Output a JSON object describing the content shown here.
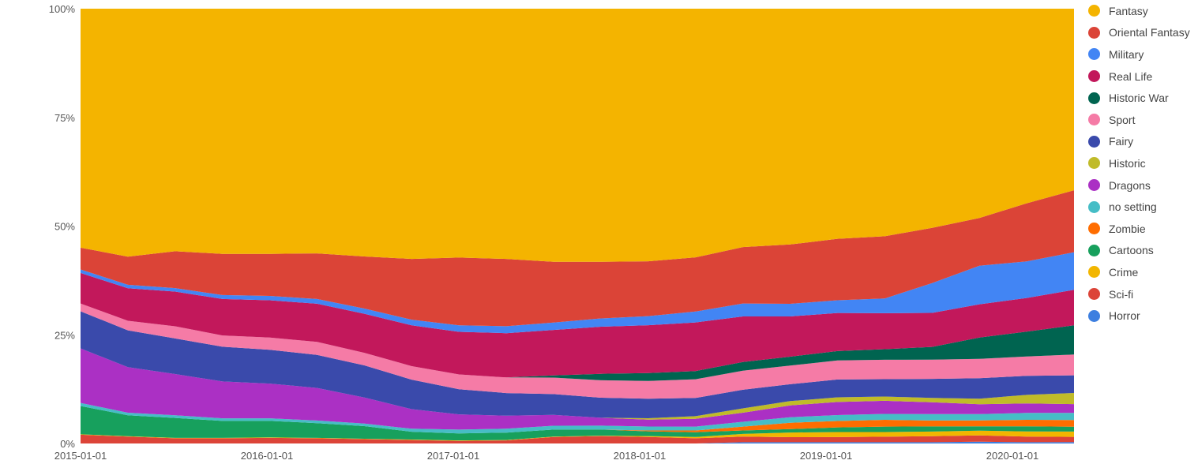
{
  "chart_data": {
    "type": "area",
    "stacked": true,
    "normalized": true,
    "x_ticks": [
      "2015-01-01",
      "2016-01-01",
      "2017-01-01",
      "2018-01-01",
      "2019-01-01",
      "2020-01-01"
    ],
    "y_ticks": [
      "0%",
      "25%",
      "50%",
      "75%",
      "100%"
    ],
    "ylim": [
      0,
      100
    ],
    "legend_position": "right",
    "grid": false,
    "x": [
      "2015-01",
      "2015-04",
      "2015-07",
      "2015-10",
      "2016-01",
      "2016-04",
      "2016-07",
      "2016-10",
      "2017-01",
      "2017-04",
      "2017-07",
      "2017-10",
      "2018-01",
      "2018-04",
      "2018-07",
      "2018-10",
      "2019-01",
      "2019-04",
      "2019-07",
      "2019-10",
      "2020-01",
      "2020-04"
    ],
    "series": [
      {
        "name": "Horror",
        "color": "#3d7fe0",
        "values": [
          0,
          0,
          0,
          0,
          0,
          0,
          0,
          0,
          0,
          0,
          0,
          0,
          0,
          0,
          0.3,
          0.3,
          0.3,
          0.3,
          0.3,
          0.4,
          0.3,
          0.3
        ]
      },
      {
        "name": "Sci-fi",
        "color": "#dc4438",
        "values": [
          2,
          1.6,
          1.2,
          1.2,
          1.3,
          1.2,
          1,
          0.8,
          0.6,
          0.7,
          1.5,
          1.7,
          1.5,
          1.2,
          1.3,
          1.2,
          1.2,
          1.3,
          1.4,
          1.5,
          1.3,
          1.2
        ]
      },
      {
        "name": "Crime",
        "color": "#f2b600",
        "values": [
          0.1,
          0.1,
          0.1,
          0.1,
          0.1,
          0.1,
          0.1,
          0.1,
          0.1,
          0.1,
          0.1,
          0.1,
          0.2,
          0.3,
          0.6,
          1.1,
          1.2,
          1.1,
          1.1,
          1.1,
          1.2,
          1.2
        ]
      },
      {
        "name": "Cartoons",
        "color": "#17a05d",
        "values": [
          6.5,
          4.8,
          4.6,
          3.9,
          3.8,
          3.4,
          2.9,
          1.8,
          1.6,
          1.7,
          1.6,
          1.4,
          1.1,
          1.1,
          0.8,
          0.8,
          1.1,
          1.3,
          1.2,
          1,
          1.2,
          1.1
        ]
      },
      {
        "name": "Zombie",
        "color": "#ff6d00",
        "values": [
          0,
          0,
          0,
          0,
          0,
          0,
          0,
          0,
          0,
          0,
          0,
          0,
          0.2,
          0.4,
          0.9,
          1.5,
          1.5,
          1.6,
          1.4,
          1.4,
          1.5,
          1.5
        ]
      },
      {
        "name": "no setting",
        "color": "#46bdc6",
        "values": [
          0.7,
          0.6,
          0.6,
          0.6,
          0.6,
          0.6,
          0.6,
          0.7,
          0.9,
          0.9,
          0.9,
          0.9,
          0.9,
          0.9,
          1.1,
          1.3,
          1.4,
          1.4,
          1.5,
          1.5,
          1.6,
          1.6
        ]
      },
      {
        "name": "Dragons",
        "color": "#ab30c4",
        "values": [
          12.5,
          10.5,
          9.5,
          8.5,
          8,
          7.5,
          6,
          4.5,
          3.5,
          3,
          2.5,
          1.8,
          1.6,
          1.8,
          2.1,
          2.8,
          3.1,
          3.1,
          2.8,
          2.3,
          2.2,
          2
        ]
      },
      {
        "name": "Historic",
        "color": "#c0bb29",
        "values": [
          0,
          0,
          0,
          0,
          0,
          0,
          0,
          0,
          0,
          0,
          0,
          0,
          0.3,
          0.6,
          1,
          1,
          1.1,
          1,
          1,
          1.3,
          2,
          2.5
        ]
      },
      {
        "name": "Fairy",
        "color": "#3a4aab",
        "values": [
          8.5,
          8.5,
          8.2,
          8,
          7.8,
          7.6,
          7.4,
          6.8,
          5.8,
          5.2,
          4.8,
          4.6,
          4.5,
          4.2,
          4.3,
          4,
          4.2,
          4.1,
          4.5,
          4.8,
          4.4,
          4
        ]
      },
      {
        "name": "Sport",
        "color": "#f57ba6",
        "values": [
          1.8,
          2.2,
          2.8,
          2.6,
          2.8,
          3,
          2.9,
          3.1,
          3.4,
          3.6,
          3.8,
          4,
          4.1,
          4.3,
          4.4,
          4.4,
          4.5,
          4.6,
          4.5,
          4.5,
          4.5,
          4.7
        ]
      },
      {
        "name": "Historic War",
        "color": "#006450",
        "values": [
          0,
          0,
          0,
          0,
          0,
          0,
          0,
          0,
          0,
          0,
          0.5,
          1.5,
          1.8,
          1.9,
          2,
          2.1,
          2.2,
          2.5,
          3,
          5,
          5.8,
          6.6
        ]
      },
      {
        "name": "Real Life",
        "color": "#c2185b",
        "values": [
          7,
          7.5,
          8,
          8.4,
          8.6,
          8.8,
          9,
          9.4,
          9.8,
          10.2,
          10.5,
          10.8,
          11,
          11.2,
          10.5,
          9.5,
          9,
          8.5,
          8,
          7.8,
          7.8,
          8
        ]
      },
      {
        "name": "Military",
        "color": "#4285f4",
        "values": [
          0.8,
          0.8,
          0.8,
          0.9,
          1,
          1.1,
          1.2,
          1.3,
          1.5,
          1.6,
          1.7,
          1.9,
          2.1,
          2.5,
          3,
          3,
          3,
          3.5,
          7,
          9,
          8.5,
          8.5
        ]
      },
      {
        "name": "Oriental Fantasy",
        "color": "#db4437",
        "values": [
          5,
          6.5,
          8.5,
          9.5,
          9.7,
          10.5,
          12,
          14,
          15.6,
          15.5,
          14,
          13,
          12.6,
          12.5,
          13,
          14,
          14.5,
          14.7,
          13,
          11.2,
          13.5,
          14
        ]
      },
      {
        "name": "Fantasy",
        "color": "#f4b400",
        "values": [
          54.8,
          57.2,
          55.9,
          56.5,
          56.5,
          56.4,
          57.1,
          57.6,
          57.3,
          57.6,
          58.4,
          58.1,
          58.1,
          57.3,
          55,
          55.7,
          54.3,
          53.8,
          51.5,
          49,
          45.2,
          41
        ]
      }
    ]
  }
}
